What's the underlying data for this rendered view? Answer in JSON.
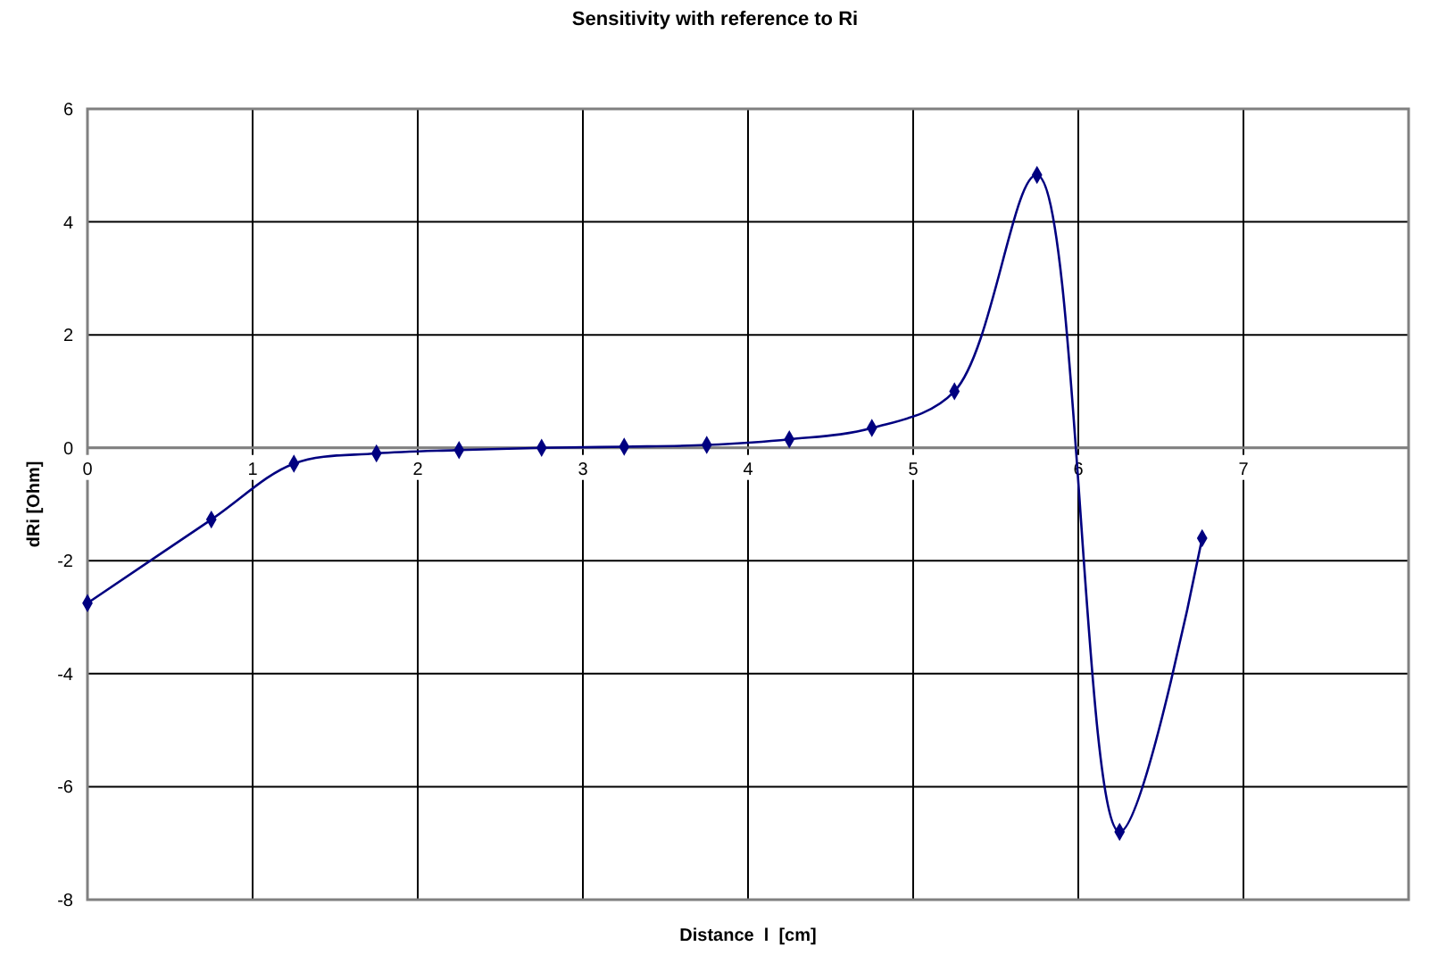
{
  "chart_data": {
    "type": "line",
    "title": "Sensitivity with reference to Ri",
    "xlabel": "Distance  l  [cm]",
    "ylabel": "dRi [Ohm]",
    "x": [
      0,
      0.75,
      1.25,
      1.75,
      2.25,
      2.75,
      3.25,
      3.75,
      4.25,
      4.75,
      5.25,
      5.75,
      6.25,
      6.75
    ],
    "series": [
      {
        "color": "#000080",
        "values": [
          -2.75,
          -1.27,
          -0.28,
          -0.1,
          -0.04,
          0,
          0.02,
          0.05,
          0.15,
          0.35,
          1.0,
          4.83,
          -6.8,
          -1.6
        ]
      }
    ],
    "xlim": [
      0,
      8
    ],
    "xticks": [
      0,
      1,
      2,
      3,
      4,
      5,
      6,
      7
    ],
    "ylim": [
      -8,
      6
    ],
    "yticks": [
      -8,
      -6,
      -4,
      -2,
      0,
      2,
      4,
      6
    ],
    "grid": true,
    "marker": "diamond",
    "line_style": "solid"
  }
}
